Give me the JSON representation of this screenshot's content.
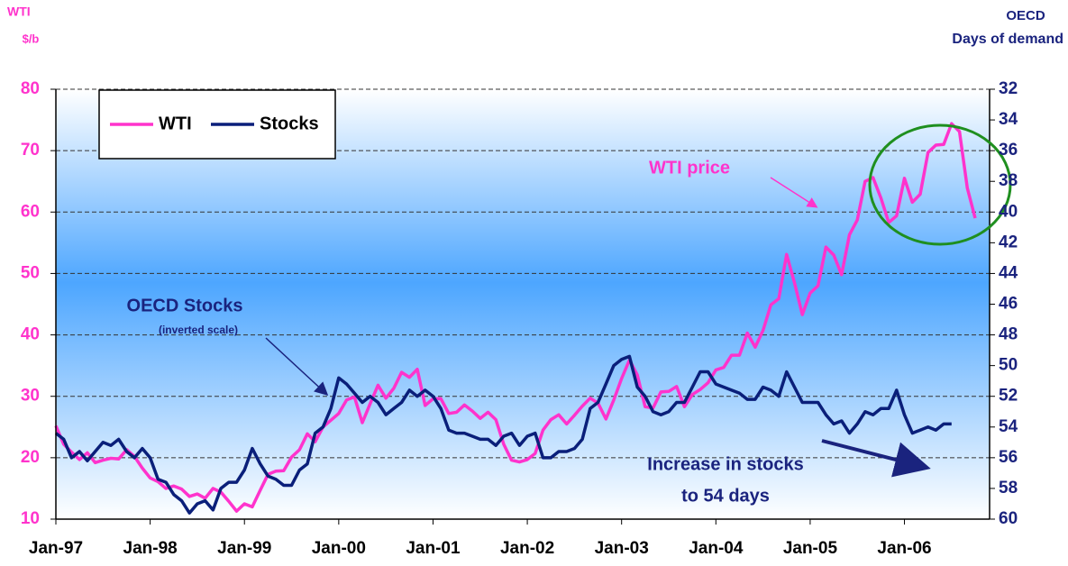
{
  "chart_data": {
    "type": "line",
    "y_axis_label": "WTI",
    "y_axis_unit": "$/b",
    "y2_axis_label": "OECD",
    "y2_axis_unit": "Days of demand",
    "categories": [
      "Jan-97",
      null,
      null,
      null,
      null,
      null,
      null,
      null,
      null,
      null,
      null,
      null,
      "Jan-98",
      null,
      null,
      null,
      null,
      null,
      null,
      null,
      null,
      null,
      null,
      null,
      "Jan-99",
      null,
      null,
      null,
      null,
      null,
      null,
      null,
      null,
      null,
      null,
      null,
      "Jan-00",
      null,
      null,
      null,
      null,
      null,
      null,
      null,
      null,
      null,
      null,
      null,
      "Jan-01",
      null,
      null,
      null,
      null,
      null,
      null,
      null,
      null,
      null,
      null,
      null,
      "Jan-02",
      null,
      null,
      null,
      null,
      null,
      null,
      null,
      null,
      null,
      null,
      null,
      "Jan-03",
      null,
      null,
      null,
      null,
      null,
      null,
      null,
      null,
      null,
      null,
      null,
      "Jan-04",
      null,
      null,
      null,
      null,
      null,
      null,
      null,
      null,
      null,
      null,
      null,
      "Jan-05",
      null,
      null,
      null,
      null,
      null,
      null,
      null,
      null,
      null,
      null,
      null,
      "Jan-06",
      null,
      null,
      null,
      null,
      null,
      null,
      null,
      null,
      null
    ],
    "series": [
      {
        "name": "WTI",
        "color": "#ff33cc",
        "axis": "y",
        "values": [
          25.2,
          22.2,
          20.9,
          19.7,
          20.8,
          19.2,
          19.6,
          19.9,
          19.8,
          21.3,
          20.2,
          18.3,
          16.7,
          16.1,
          15.0,
          15.4,
          14.9,
          13.7,
          14.1,
          13.4,
          15.0,
          14.4,
          12.9,
          11.3,
          12.5,
          12.0,
          14.7,
          17.3,
          17.8,
          17.9,
          20.1,
          21.3,
          23.9,
          22.6,
          25.0,
          26.1,
          27.2,
          29.4,
          29.9,
          25.7,
          28.8,
          31.8,
          29.7,
          31.3,
          33.9,
          33.1,
          34.4,
          28.5,
          29.6,
          29.6,
          27.2,
          27.4,
          28.6,
          27.6,
          26.4,
          27.4,
          26.2,
          22.2,
          19.6,
          19.3,
          19.7,
          20.7,
          24.5,
          26.2,
          27.0,
          25.5,
          26.9,
          28.4,
          29.7,
          28.9,
          26.3,
          29.4,
          32.9,
          35.9,
          33.5,
          28.3,
          28.1,
          30.7,
          30.8,
          31.6,
          28.3,
          30.3,
          31.1,
          32.2,
          34.3,
          34.7,
          36.7,
          36.7,
          40.3,
          38.0,
          40.7,
          44.9,
          45.9,
          53.1,
          48.5,
          43.3,
          46.8,
          48.0,
          54.3,
          53.0,
          49.8,
          56.3,
          58.7,
          65.0,
          65.6,
          62.3,
          58.3,
          59.4,
          65.5,
          61.6,
          62.9,
          69.7,
          70.9,
          71.0,
          74.4,
          73.1,
          63.9,
          59.0
        ]
      },
      {
        "name": "Stocks",
        "color": "#0a1f7a",
        "axis": "y2",
        "values": [
          54.4,
          54.8,
          56,
          55.6,
          56.2,
          55.6,
          55,
          55.2,
          54.8,
          55.6,
          56,
          55.4,
          56,
          57.4,
          57.6,
          58.4,
          58.8,
          59.6,
          59,
          58.8,
          59.4,
          58,
          57.6,
          57.6,
          56.8,
          55.4,
          56.4,
          57.2,
          57.4,
          57.8,
          57.8,
          56.8,
          56.4,
          54.4,
          54,
          52.8,
          50.8,
          51.2,
          51.8,
          52.4,
          52,
          52.4,
          53.2,
          52.8,
          52.4,
          51.6,
          52,
          51.6,
          52,
          52.8,
          54.2,
          54.4,
          54.4,
          54.6,
          54.8,
          54.8,
          55.2,
          54.6,
          54.4,
          55.2,
          54.6,
          54.4,
          56,
          56,
          55.6,
          55.6,
          55.4,
          54.8,
          52.8,
          52.4,
          51.2,
          50,
          49.6,
          49.4,
          51.4,
          52,
          53,
          53.2,
          53,
          52.4,
          52.4,
          51.4,
          50.4,
          50.4,
          51.2,
          51.4,
          51.6,
          51.8,
          52.2,
          52.2,
          51.4,
          51.6,
          52,
          50.4,
          51.4,
          52.4,
          52.4,
          52.4,
          53.2,
          53.8,
          53.6,
          54.4,
          53.8,
          53,
          53.2,
          52.8,
          52.8,
          51.6,
          53.2,
          54.4,
          54.2,
          54,
          54.2,
          53.8,
          53.8,
          null,
          null,
          null
        ]
      }
    ],
    "ylim": [
      10,
      80
    ],
    "yticks": [
      10,
      20,
      30,
      40,
      50,
      60,
      70,
      80
    ],
    "y2lim": [
      60,
      32
    ],
    "y2ticks": [
      32,
      34,
      36,
      38,
      40,
      42,
      44,
      46,
      48,
      50,
      52,
      54,
      56,
      58,
      60
    ],
    "grid": true,
    "legend": "top-left",
    "annotations": [
      "WTI price",
      "OECD Stocks",
      "(inverted scale)",
      "Increase in stocks",
      "to 54 days"
    ]
  }
}
